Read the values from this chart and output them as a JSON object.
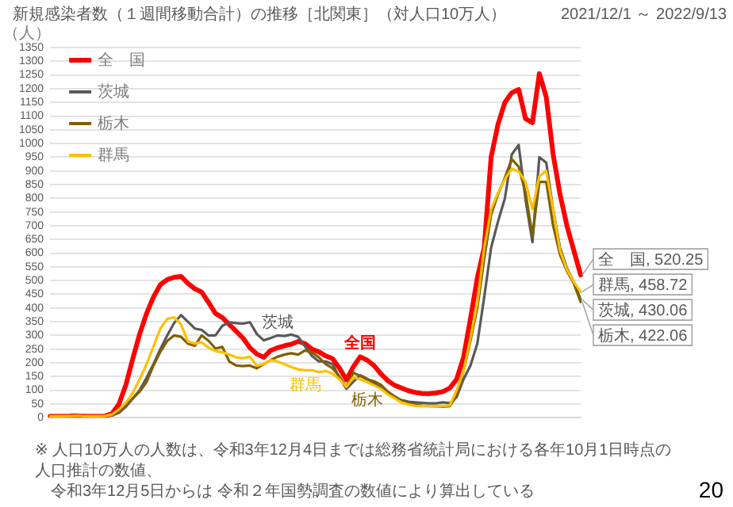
{
  "chart_data": {
    "type": "line",
    "title": "新規感染者数（１週間移動合計）の推移［北関東］（対人口10万人）",
    "subtitle": "2021/12/1 ～ 2022/9/13",
    "ylabel": "（人）",
    "categories": [
      null,
      null,
      null,
      null,
      null,
      null,
      null,
      null,
      null,
      null,
      null,
      null,
      null,
      null,
      null,
      null,
      null,
      null,
      null,
      null,
      null,
      null,
      null,
      null,
      null,
      null,
      null,
      null,
      null,
      null,
      null,
      null,
      null,
      null,
      null,
      null,
      null,
      null,
      null,
      null,
      null,
      null,
      null,
      null,
      null,
      null,
      null,
      null,
      null,
      null,
      null,
      null,
      null,
      null,
      null,
      null,
      null,
      null,
      null,
      null,
      null,
      null,
      null,
      null,
      null,
      null,
      null,
      null,
      null,
      null,
      null,
      null,
      null,
      null,
      null,
      null,
      null,
      null
    ],
    "series": [
      {
        "name": "全　国",
        "color": "#ff0000",
        "values": [
          5,
          5,
          5,
          6,
          6,
          5,
          5,
          5,
          6,
          15,
          50,
          120,
          215,
          305,
          380,
          440,
          485,
          504,
          512,
          515,
          490,
          470,
          458,
          420,
          380,
          365,
          340,
          315,
          290,
          255,
          232,
          220,
          245,
          255,
          262,
          268,
          278,
          270,
          250,
          240,
          225,
          215,
          180,
          138,
          185,
          222,
          210,
          190,
          160,
          135,
          118,
          108,
          98,
          92,
          88,
          87,
          90,
          95,
          108,
          140,
          220,
          360,
          510,
          620,
          950,
          1070,
          1150,
          1185,
          1197,
          1090,
          1076,
          1255,
          1170,
          960,
          815,
          700,
          610,
          520.25
        ]
      },
      {
        "name": "茨城",
        "color": "#595959",
        "values": [
          null,
          null,
          null,
          null,
          null,
          null,
          null,
          null,
          null,
          8,
          18,
          40,
          70,
          100,
          145,
          195,
          250,
          300,
          345,
          374,
          350,
          325,
          320,
          300,
          300,
          335,
          348,
          345,
          343,
          348,
          305,
          282,
          290,
          300,
          298,
          303,
          295,
          260,
          225,
          205,
          205,
          195,
          145,
          105,
          131,
          155,
          142,
          125,
          110,
          88,
          72,
          64,
          58,
          56,
          54,
          52,
          52,
          56,
          53,
          75,
          140,
          190,
          270,
          440,
          620,
          715,
          800,
          960,
          995,
          794,
          640,
          950,
          930,
          760,
          620,
          545,
          495,
          430.06
        ]
      },
      {
        "name": "栃木",
        "color": "#806000",
        "values": [
          null,
          null,
          null,
          null,
          null,
          null,
          null,
          null,
          null,
          8,
          22,
          45,
          70,
          95,
          130,
          190,
          240,
          280,
          300,
          295,
          270,
          262,
          300,
          280,
          252,
          258,
          205,
          190,
          188,
          190,
          180,
          195,
          210,
          222,
          230,
          235,
          230,
          245,
          238,
          220,
          195,
          180,
          150,
          112,
          164,
          152,
          140,
          133,
          120,
          95,
          78,
          62,
          52,
          47,
          44,
          42,
          41,
          40,
          42,
          80,
          170,
          280,
          400,
          580,
          740,
          815,
          875,
          943,
          915,
          820,
          663,
          860,
          860,
          700,
          595,
          535,
          490,
          422.06
        ]
      },
      {
        "name": "群馬",
        "color": "#ffc000",
        "values": [
          5,
          5,
          5,
          6,
          7,
          5,
          5,
          5,
          6,
          12,
          30,
          55,
          90,
          140,
          195,
          260,
          325,
          360,
          366,
          340,
          278,
          270,
          275,
          255,
          243,
          238,
          230,
          220,
          217,
          222,
          190,
          195,
          210,
          205,
          195,
          185,
          176,
          173,
          173,
          166,
          170,
          160,
          140,
          112,
          147,
          140,
          130,
          118,
          105,
          85,
          70,
          55,
          48,
          43,
          42,
          42,
          42,
          42,
          45,
          100,
          170,
          290,
          420,
          620,
          760,
          820,
          870,
          908,
          898,
          860,
          760,
          880,
          900,
          760,
          610,
          540,
          495,
          458.72
        ]
      }
    ],
    "ylim": [
      0,
      1350
    ],
    "yticks": [
      0,
      50,
      100,
      150,
      200,
      250,
      300,
      350,
      400,
      450,
      500,
      550,
      600,
      650,
      700,
      750,
      800,
      850,
      900,
      950,
      1000,
      1050,
      1100,
      1150,
      1200,
      1250,
      1300,
      1350
    ],
    "grid": "y",
    "legend": "top left",
    "marker": "none",
    "line_style": "solid",
    "annotations": [
      "全国",
      "茨城",
      "群馬",
      "栃木",
      "全　国, 520.25",
      "群馬, 458.72",
      "茨城, 430.06",
      "栃木, 422.06",
      "※ 人口10万人の人数は、令和3年12月4日までは総務省統計局における各年10月1日時点の人口推計の数値、",
      "令和3年12月5日からは 令和２年国勢調査の数値により算出している",
      "20"
    ]
  }
}
